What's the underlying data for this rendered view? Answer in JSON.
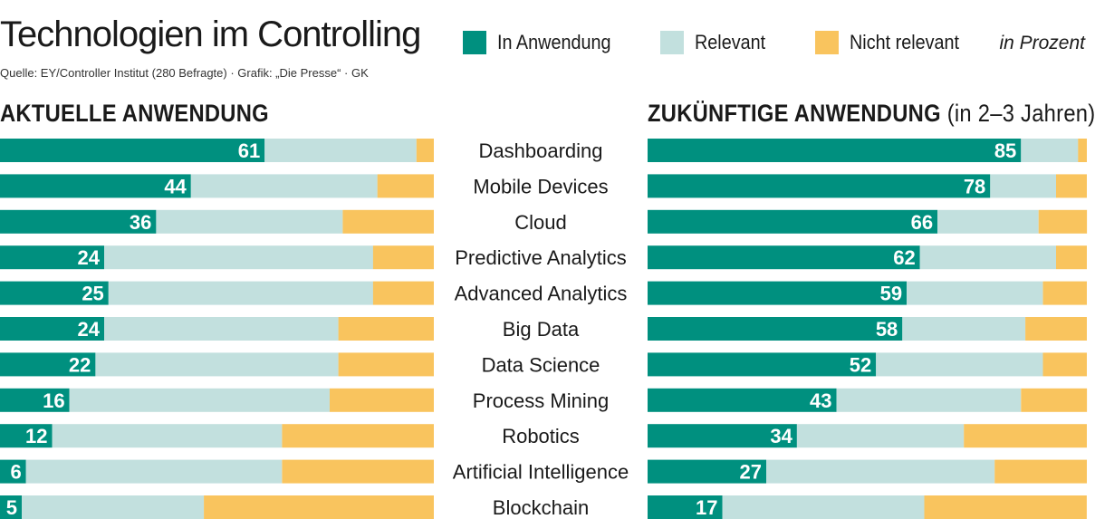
{
  "title": "Technologien im Controlling",
  "source": "Quelle: EY/Controller Institut (280 Befragte) · Grafik: „Die Presse“ · GK",
  "unit": "in Prozent",
  "legend": [
    {
      "label": "In Anwendung",
      "color": "#00907f"
    },
    {
      "label": "Relevant",
      "color": "#c2e0de"
    },
    {
      "label": "Nicht relevant",
      "color": "#f9c45e"
    }
  ],
  "left_title": "AKTUELLE ANWENDUNG",
  "right_title": "ZUKÜNFTIGE ANWENDUNG",
  "right_subtitle": "(in 2–3 Jahren)",
  "chart_data": [
    {
      "type": "bar",
      "title": "AKTUELLE ANWENDUNG",
      "categories": [
        "Dashboarding",
        "Mobile Devices",
        "Cloud",
        "Predictive Analytics",
        "Advanced Analytics",
        "Big Data",
        "Data Science",
        "Process Mining",
        "Robotics",
        "Artificial Intelligence",
        "Blockchain"
      ],
      "stacked": true,
      "orientation": "horizontal",
      "xlim": [
        0,
        100
      ],
      "series": [
        {
          "name": "In Anwendung",
          "values": [
            61,
            44,
            36,
            24,
            25,
            24,
            22,
            16,
            12,
            6,
            5
          ],
          "labeled": true
        },
        {
          "name": "Relevant",
          "values": [
            35,
            43,
            43,
            62,
            61,
            54,
            56,
            60,
            53,
            59,
            42
          ]
        },
        {
          "name": "Nicht relevant",
          "values": [
            4,
            13,
            21,
            14,
            14,
            22,
            22,
            24,
            35,
            35,
            53
          ]
        }
      ]
    },
    {
      "type": "bar",
      "title": "ZUKÜNFTIGE ANWENDUNG (in 2–3 Jahren)",
      "categories": [
        "Dashboarding",
        "Mobile Devices",
        "Cloud",
        "Predictive Analytics",
        "Advanced Analytics",
        "Big Data",
        "Data Science",
        "Process Mining",
        "Robotics",
        "Artificial Intelligence",
        "Blockchain"
      ],
      "stacked": true,
      "orientation": "horizontal",
      "xlim": [
        0,
        100
      ],
      "series": [
        {
          "name": "In Anwendung",
          "values": [
            85,
            78,
            66,
            62,
            59,
            58,
            52,
            43,
            34,
            27,
            17
          ],
          "labeled": true
        },
        {
          "name": "Relevant",
          "values": [
            13,
            15,
            23,
            31,
            31,
            28,
            38,
            42,
            38,
            52,
            46
          ]
        },
        {
          "name": "Nicht relevant",
          "values": [
            2,
            7,
            11,
            7,
            10,
            14,
            10,
            15,
            28,
            21,
            37
          ]
        }
      ]
    }
  ]
}
